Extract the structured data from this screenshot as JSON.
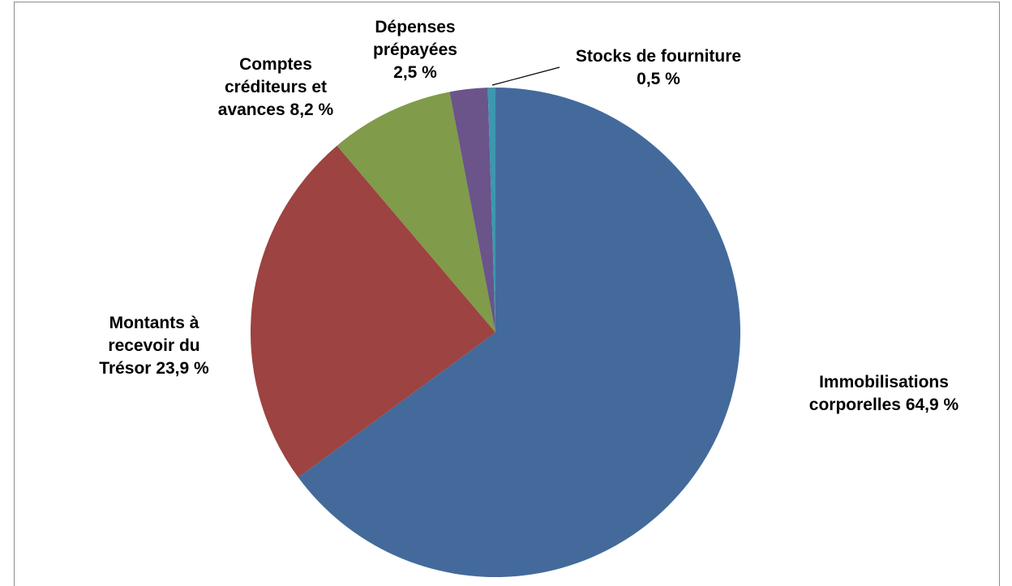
{
  "chart_data": {
    "type": "pie",
    "categories": [
      "Immobilisations corporelles",
      "Montants à recevoir du Trésor",
      "Comptes créditeurs et avances",
      "Dépenses prépayées",
      "Stocks de fourniture"
    ],
    "values": [
      64.9,
      23.9,
      8.2,
      2.5,
      0.5
    ],
    "value_labels": [
      "64,9 %",
      "23,9 %",
      "8,2 %",
      "2,5 %",
      "0,5 %"
    ],
    "colors": [
      "#436a9b",
      "#9d4341",
      "#809b4a",
      "#6a548a",
      "#3b98af"
    ]
  }
}
